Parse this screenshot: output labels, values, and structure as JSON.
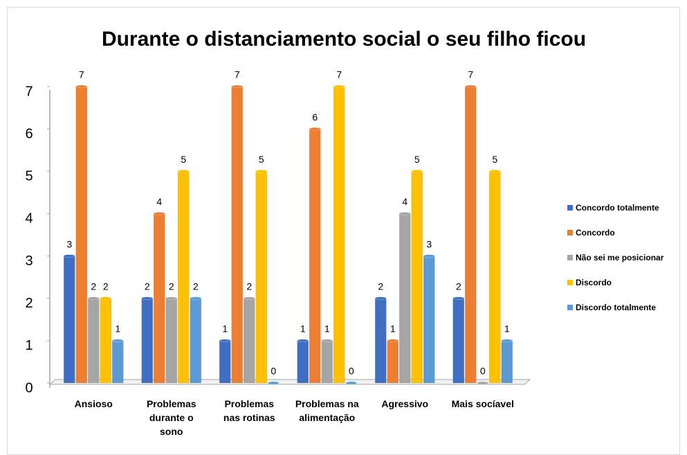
{
  "chart_data": {
    "type": "bar",
    "title": "Durante o distanciamento social o seu filho ficou",
    "categories": [
      "Ansioso",
      "Problemas durante o sono",
      "Problemas nas rotinas",
      "Problemas na alimentação",
      "Agressivo",
      "Mais socíavel"
    ],
    "series": [
      {
        "name": "Concordo totalmente",
        "color": "#3f6fc4",
        "values": [
          3,
          2,
          1,
          1,
          2,
          2
        ]
      },
      {
        "name": "Concordo",
        "color": "#ed7d31",
        "values": [
          7,
          4,
          7,
          6,
          1,
          7
        ]
      },
      {
        "name": "Não sei me posicionar",
        "color": "#a5a5a5",
        "values": [
          2,
          2,
          2,
          1,
          4,
          0
        ]
      },
      {
        "name": "Discordo",
        "color": "#ffc000",
        "values": [
          2,
          5,
          5,
          7,
          5,
          5
        ]
      },
      {
        "name": "Discordo totalmente",
        "color": "#5b9bd5",
        "values": [
          1,
          2,
          0,
          0,
          3,
          1
        ]
      }
    ],
    "ylim": [
      0,
      7
    ],
    "yticks": [
      0,
      1,
      2,
      3,
      4,
      5,
      6,
      7
    ],
    "legend": "right"
  }
}
